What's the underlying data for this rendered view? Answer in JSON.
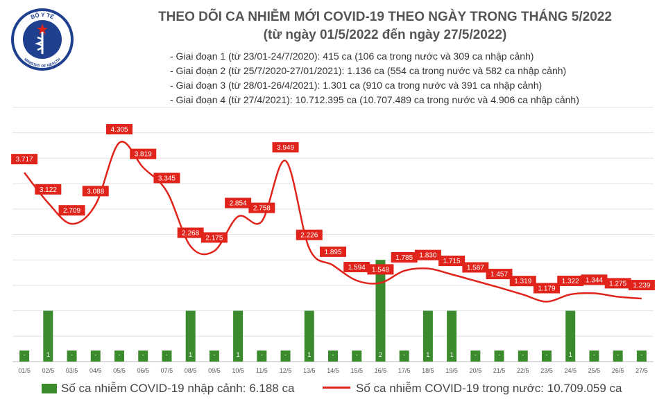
{
  "header": {
    "title_line1": "THEO DÕI CA NHIỄM MỚI COVID-19 THEO NGÀY TRONG THÁNG 5/2022",
    "title_line2": "(từ ngày 01/5/2022 đến ngày 27/5/2022)",
    "phases": [
      "- Giai đoạn 1 (từ 23/01-24/7/2020): 415 ca (106 ca trong nước và 309 ca nhập cảnh)",
      "- Giai đoạn 2 (từ 25/7/2020-27/01/2021): 1.136 ca (554 ca trong nước và 582 ca nhập cảnh)",
      "- Giai đoạn 3 (từ 28/01-26/4/2021): 1.301 ca (910 ca trong nước và 391 ca nhập cảnh)",
      "- Giai đoạn 4 (từ 27/4/2021): 10.712.395 ca (10.707.489 ca trong nước và 4.906 ca nhập cảnh)"
    ]
  },
  "logo": {
    "top_text": "BỘ Y TẾ",
    "bottom_text": "MINISTRY OF HEALTH"
  },
  "legend": {
    "bar_label": "Số ca nhiễm COVID-19 nhập cảnh: 6.188 ca",
    "line_label": "Số ca nhiễm COVID-19 trong nước: 10.709.059 ca"
  },
  "colors": {
    "bar": "#3c8a2e",
    "line": "#e0241b",
    "label_bg": "#e0241b",
    "title": "#555555"
  },
  "chart_data": {
    "type": "bar",
    "categories": [
      "01/5",
      "02/5",
      "03/5",
      "04/5",
      "05/5",
      "06/5",
      "07/5",
      "08/5",
      "09/5",
      "10/5",
      "11/5",
      "12/5",
      "13/5",
      "14/5",
      "15/5",
      "16/5",
      "17/5",
      "18/5",
      "19/5",
      "20/5",
      "21/5",
      "22/5",
      "23/5",
      "24/5",
      "25/5",
      "26/5",
      "27/5"
    ],
    "series": [
      {
        "name": "Số ca nhiễm COVID-19 nhập cảnh: 6.188 ca",
        "type": "bar",
        "axis": "right",
        "values": [
          0,
          1,
          0,
          0,
          0,
          0,
          0,
          1,
          0,
          1,
          0,
          0,
          1,
          0,
          0,
          2,
          0,
          1,
          1,
          0,
          0,
          0,
          0,
          1,
          0,
          0,
          0
        ],
        "data_labels": [
          "-",
          "1",
          "-",
          "-",
          "-",
          "-",
          "-",
          "1",
          "-",
          "1",
          "-",
          "-",
          "1",
          "-",
          "-",
          "2",
          "-",
          "1",
          "1",
          "-",
          "-",
          "-",
          "-",
          "1",
          "-",
          "-",
          "-"
        ]
      },
      {
        "name": "Số ca nhiễm COVID-19 trong nước: 10.709.059 ca",
        "type": "line",
        "axis": "left",
        "values": [
          3717,
          3122,
          2709,
          3088,
          4305,
          3819,
          3345,
          2268,
          2175,
          2854,
          2758,
          3949,
          2226,
          1895,
          1594,
          1548,
          1785,
          1830,
          1715,
          1587,
          1457,
          1319,
          1179,
          1322,
          1344,
          1275,
          1239
        ],
        "data_labels": [
          "3.717",
          "3.122",
          "2.709",
          "3.088",
          "4.305",
          "3.819",
          "3.345",
          "2.268",
          "2.175",
          "2.854",
          "2.758",
          "3.949",
          "2.226",
          "1.895",
          "1.594",
          "1.548",
          "1.785",
          "1.830",
          "1.715",
          "1.587",
          "1.457",
          "1.319",
          "1.179",
          "1.322",
          "1.344",
          "1.275",
          "1.239"
        ]
      }
    ],
    "ylim_left": [
      0,
      5000
    ],
    "ylim_right": [
      0,
      5
    ],
    "grid": "horizontal"
  }
}
